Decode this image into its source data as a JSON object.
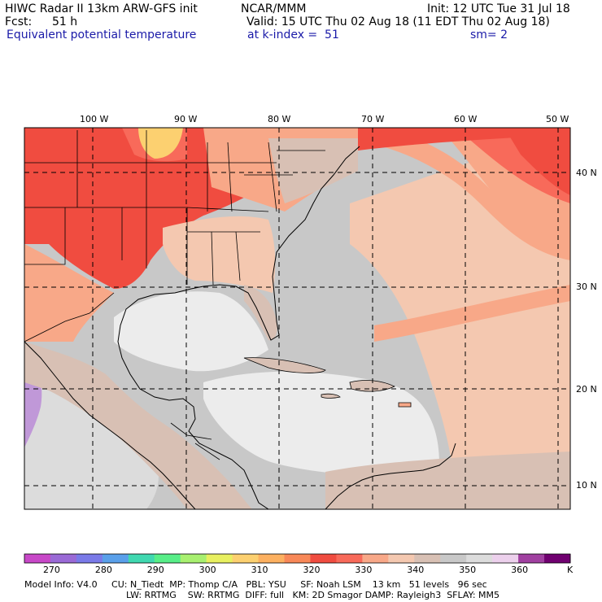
{
  "header": {
    "title": "HIWC Radar II 13km ARW-GFS init",
    "org": "NCAR/MMM",
    "init": "Init: 12 UTC Tue 31 Jul 18",
    "fcst_label": "Fcst:",
    "fcst_value": "51 h",
    "valid": "Valid: 15 UTC Thu 02 Aug 18 (11 EDT Thu 02 Aug 18)",
    "field": "Equivalent potential temperature",
    "level": "at k-index =  51",
    "smooth": "sm= 2"
  },
  "map": {
    "lon_labels": [
      "100 W",
      "90 W",
      "80 W",
      "70 W",
      "60 W",
      "50 W"
    ],
    "lat_labels": [
      "40 N",
      "30 N",
      "20 N",
      "10 N"
    ]
  },
  "colorbar": {
    "ticks": [
      "270",
      "280",
      "290",
      "300",
      "310",
      "320",
      "330",
      "340",
      "350",
      "360"
    ],
    "unit": "K",
    "colors": [
      "#c848c8",
      "#9a6ad6",
      "#7a7ae8",
      "#5aa0ea",
      "#40d8b0",
      "#58ee88",
      "#a8f070",
      "#e8f060",
      "#fcd070",
      "#fcb060",
      "#f88858",
      "#f04c40",
      "#f86a5a",
      "#f8a888",
      "#f4c8b0",
      "#d8c0b4",
      "#c8c8c8",
      "#dcdcdc",
      "#ecd0ec",
      "#a040a0",
      "#700070"
    ]
  },
  "footer": {
    "line1": "Model Info: V4.0     CU: N_Tiedt  MP: Thomp C/A   PBL: YSU     SF: Noah LSM    13 km   51 levels   96 sec",
    "line2": "LW: RRTMG    SW: RRTMG  DIFF: full   KM: 2D Smagor DAMP: Rayleigh3  SFLAY: MM5"
  }
}
